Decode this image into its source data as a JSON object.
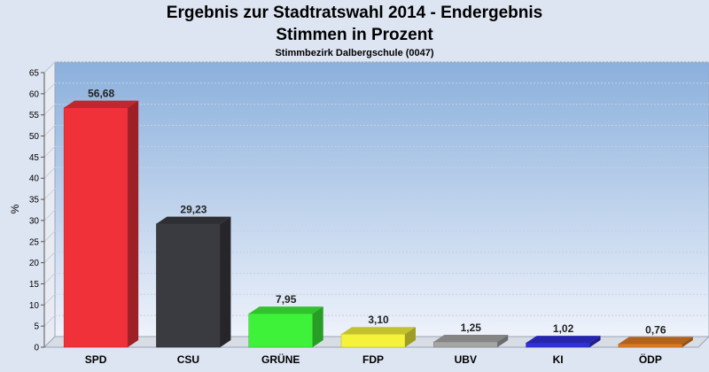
{
  "header": {
    "title": "Ergebnis zur Stadtratswahl 2014 - Endergebnis",
    "subtitle": "Stimmen in Prozent",
    "district": "Stimmbezirk Dalbergschule (0047)"
  },
  "chart_data": {
    "type": "bar",
    "title": "Ergebnis zur Stadtratswahl 2014 - Endergebnis",
    "subtitle": "Stimmen in Prozent",
    "xlabel": "",
    "ylabel": "%",
    "ylim": [
      0,
      65
    ],
    "yticks": [
      0,
      5,
      10,
      15,
      20,
      25,
      30,
      35,
      40,
      45,
      50,
      55,
      60,
      65
    ],
    "grid": true,
    "categories": [
      "SPD",
      "CSU",
      "GRÜNE",
      "FDP",
      "UBV",
      "KI",
      "ÖDP"
    ],
    "values": [
      56.68,
      29.23,
      7.95,
      3.1,
      1.25,
      1.02,
      0.76
    ],
    "value_labels": [
      "56,68",
      "29,23",
      "7,95",
      "3,10",
      "1,25",
      "1,02",
      "0,76"
    ],
    "colors": [
      "#f0313a",
      "#3a3b40",
      "#3ef23a",
      "#f4f23a",
      "#a6a6a6",
      "#3030d8",
      "#e07a20"
    ]
  }
}
